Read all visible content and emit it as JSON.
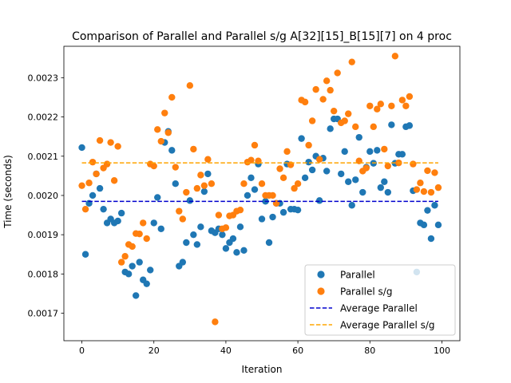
{
  "chart_data": {
    "type": "scatter",
    "title": "Comparison of Parallel and Parallel s/g A[32][15]_B[15][7] on 4 proc",
    "xlabel": "Iteration",
    "ylabel": "Time (seconds)",
    "xlim": [
      -5,
      105
    ],
    "ylim": [
      0.00163,
      0.00238
    ],
    "xticks": [
      0,
      20,
      40,
      60,
      80,
      100
    ],
    "xtick_labels": [
      "0",
      "20",
      "40",
      "60",
      "80",
      "100"
    ],
    "yticks": [
      0.0017,
      0.0018,
      0.0019,
      0.002,
      0.0021,
      0.0022,
      0.0023
    ],
    "ytick_labels": [
      "0.0017",
      "0.0018",
      "0.0019",
      "0.0020",
      "0.0021",
      "0.0022",
      "0.0023"
    ],
    "grid": false,
    "legend_position": "lower-right",
    "x": [
      0,
      1,
      2,
      3,
      4,
      5,
      6,
      7,
      8,
      9,
      10,
      11,
      12,
      13,
      14,
      15,
      16,
      17,
      18,
      19,
      20,
      21,
      22,
      23,
      24,
      25,
      26,
      27,
      28,
      29,
      30,
      31,
      32,
      33,
      34,
      35,
      36,
      37,
      38,
      39,
      40,
      41,
      42,
      43,
      44,
      45,
      46,
      47,
      48,
      49,
      50,
      51,
      52,
      53,
      54,
      55,
      56,
      57,
      58,
      59,
      60,
      61,
      62,
      63,
      64,
      65,
      66,
      67,
      68,
      69,
      70,
      71,
      72,
      73,
      74,
      75,
      76,
      77,
      78,
      79,
      80,
      81,
      82,
      83,
      84,
      85,
      86,
      87,
      88,
      89,
      90,
      91,
      92,
      93,
      94,
      95,
      96,
      97,
      98,
      99
    ],
    "series": [
      {
        "name": "Parallel",
        "kind": "scatter",
        "color": "#1f77b4",
        "values": [
          0.002122,
          0.00185,
          0.00198,
          0.002,
          0.002055,
          0.002018,
          0.001965,
          0.00193,
          0.00194,
          0.00193,
          0.001935,
          0.001955,
          0.001805,
          0.0018,
          0.00182,
          0.001745,
          0.00183,
          0.001785,
          0.001775,
          0.00181,
          0.00193,
          0.001995,
          0.001915,
          0.002135,
          0.002163,
          0.002115,
          0.00203,
          0.00182,
          0.00183,
          0.00188,
          0.001987,
          0.0019,
          0.001875,
          0.00192,
          0.00201,
          0.002055,
          0.00191,
          0.001905,
          0.001915,
          0.0019,
          0.001865,
          0.00188,
          0.00189,
          0.001855,
          0.00192,
          0.00186,
          0.002,
          0.002045,
          0.002015,
          0.00208,
          0.00194,
          0.001985,
          0.00188,
          0.001945,
          0.00198,
          0.00198,
          0.001957,
          0.00208,
          0.001965,
          0.001965,
          0.001963,
          0.002145,
          0.002045,
          0.002085,
          0.002065,
          0.0021,
          0.001987,
          0.002095,
          0.002062,
          0.00217,
          0.002195,
          0.002195,
          0.002055,
          0.002112,
          0.002035,
          0.001975,
          0.00204,
          0.002148,
          0.002008,
          0.002072,
          0.002112,
          0.002082,
          0.002115,
          0.00202,
          0.002035,
          0.002008,
          0.00218,
          0.002082,
          0.002105,
          0.002105,
          0.002175,
          0.002178,
          0.002012,
          0.001805,
          0.00193,
          0.001925,
          0.001962,
          0.00189,
          0.001975,
          0.001925
        ]
      },
      {
        "name": "Parallel s/g",
        "kind": "scatter",
        "color": "#ff7f0e",
        "values": [
          0.002025,
          0.001965,
          0.002032,
          0.002085,
          0.002055,
          0.00214,
          0.00207,
          0.00208,
          0.002135,
          0.002038,
          0.002125,
          0.00183,
          0.001845,
          0.001875,
          0.00187,
          0.001903,
          0.001902,
          0.00193,
          0.00189,
          0.00208,
          0.002075,
          0.002168,
          0.002138,
          0.00221,
          0.00216,
          0.00225,
          0.002072,
          0.00196,
          0.00194,
          0.002008,
          0.00228,
          0.002118,
          0.002018,
          0.002052,
          0.002025,
          0.002092,
          0.00203,
          0.001678,
          0.00195,
          0.001915,
          0.001918,
          0.001948,
          0.00195,
          0.00196,
          0.001963,
          0.00203,
          0.002085,
          0.00209,
          0.002128,
          0.002088,
          0.00203,
          0.002,
          0.002,
          0.002,
          0.00198,
          0.002068,
          0.002045,
          0.002112,
          0.002078,
          0.002018,
          0.00203,
          0.002243,
          0.002238,
          0.002128,
          0.00219,
          0.00227,
          0.002092,
          0.002245,
          0.002292,
          0.002268,
          0.002215,
          0.002312,
          0.002185,
          0.00219,
          0.002208,
          0.00234,
          0.002175,
          0.002088,
          0.002062,
          0.00207,
          0.002228,
          0.002175,
          0.00222,
          0.002233,
          0.002118,
          0.002075,
          0.002228,
          0.002355,
          0.002083,
          0.002243,
          0.002228,
          0.002252,
          0.00208,
          0.002015,
          0.002032,
          0.00201,
          0.002063,
          0.002008,
          0.002058,
          0.00202
        ]
      },
      {
        "name": "Average Parallel",
        "kind": "hline",
        "style": "dashed",
        "color": "#0000cd",
        "value": 0.001985
      },
      {
        "name": "Average Parallel s/g",
        "kind": "hline",
        "style": "dashed",
        "color": "#ffa500",
        "value": 0.002083
      }
    ]
  }
}
